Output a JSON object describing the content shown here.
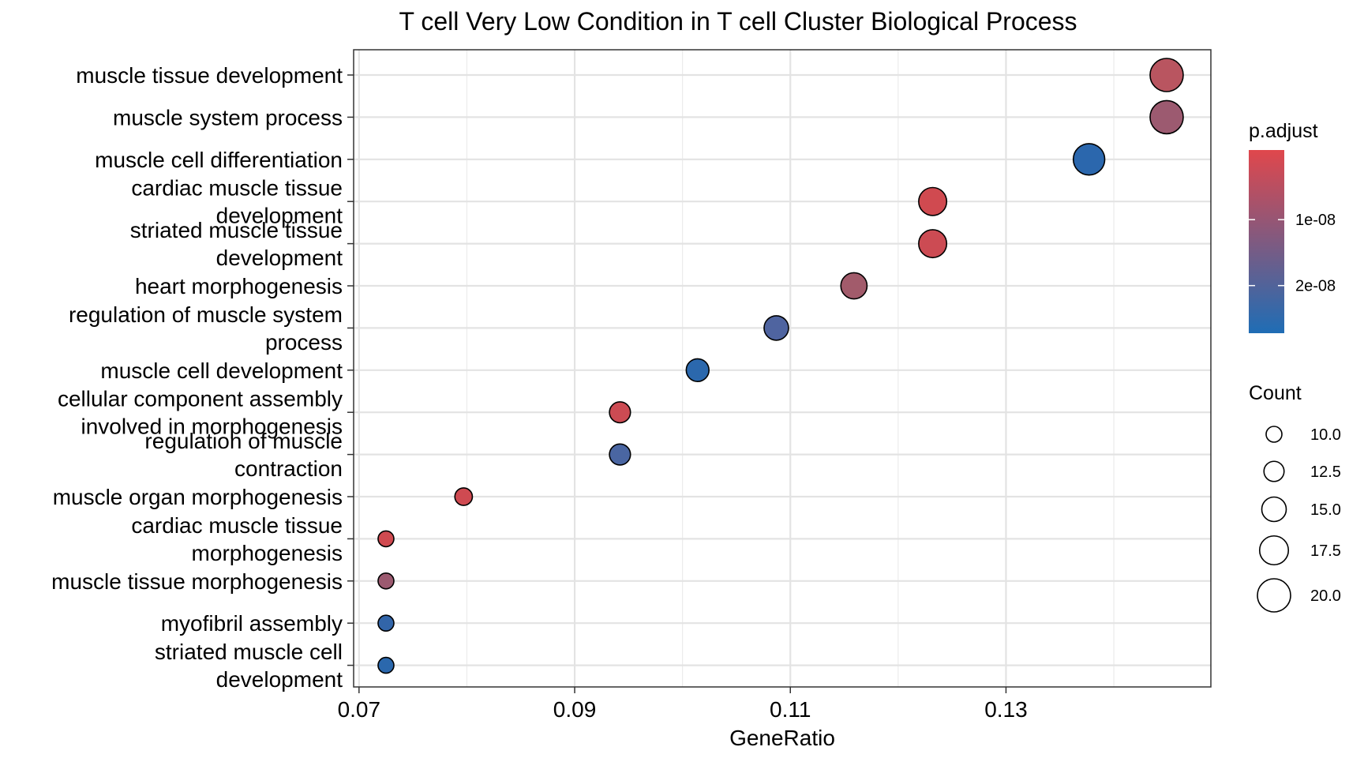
{
  "chart_data": {
    "type": "scatter",
    "title": "T cell Very Low Condition in T cell Cluster Biological Process",
    "xlabel": "GeneRatio",
    "ylabel": "",
    "xlim": [
      0.0695,
      0.149
    ],
    "xticks": [
      "0.07",
      "0.09",
      "0.11",
      "0.13"
    ],
    "xtick_values": [
      0.07,
      0.09,
      0.11,
      0.13
    ],
    "grid": true,
    "legend_position": "right",
    "categories": [
      "muscle tissue development",
      "muscle system process",
      "muscle cell differentiation",
      "cardiac muscle tissue development",
      "striated muscle tissue development",
      "heart morphogenesis",
      "regulation of muscle system process",
      "muscle cell development",
      "cellular component assembly involved in morphogenesis",
      "regulation of muscle contraction",
      "muscle organ morphogenesis",
      "cardiac muscle tissue morphogenesis",
      "muscle tissue morphogenesis",
      "myofibril assembly",
      "striated muscle cell development"
    ],
    "category_lines": [
      [
        "muscle tissue development"
      ],
      [
        "muscle system process"
      ],
      [
        "muscle cell differentiation"
      ],
      [
        "cardiac muscle tissue",
        "development"
      ],
      [
        "striated muscle tissue",
        "development"
      ],
      [
        "heart morphogenesis"
      ],
      [
        "regulation of muscle system",
        "process"
      ],
      [
        "muscle cell development"
      ],
      [
        "cellular component assembly",
        "involved in morphogenesis"
      ],
      [
        "regulation of muscle",
        "contraction"
      ],
      [
        "muscle organ morphogenesis"
      ],
      [
        "cardiac muscle tissue",
        "morphogenesis"
      ],
      [
        "muscle tissue morphogenesis"
      ],
      [
        "myofibril assembly"
      ],
      [
        "striated muscle cell",
        "development"
      ]
    ],
    "points": [
      {
        "term": "muscle tissue development",
        "gene_ratio": 0.1449,
        "count": 20,
        "color": "#b95560"
      },
      {
        "term": "muscle system process",
        "gene_ratio": 0.1449,
        "count": 20,
        "color": "#9c5a70"
      },
      {
        "term": "muscle cell differentiation",
        "gene_ratio": 0.1377,
        "count": 19,
        "color": "#2b67ad"
      },
      {
        "term": "cardiac muscle tissue development",
        "gene_ratio": 0.1232,
        "count": 17,
        "color": "#d04a50"
      },
      {
        "term": "striated muscle tissue development",
        "gene_ratio": 0.1232,
        "count": 17,
        "color": "#cc4b53"
      },
      {
        "term": "heart morphogenesis",
        "gene_ratio": 0.1159,
        "count": 16,
        "color": "#a25b6b"
      },
      {
        "term": "regulation of muscle system process",
        "gene_ratio": 0.1087,
        "count": 15,
        "color": "#4f64a0"
      },
      {
        "term": "muscle cell development",
        "gene_ratio": 0.1014,
        "count": 14,
        "color": "#2b68ad"
      },
      {
        "term": "cellular component assembly involved in morphogenesis",
        "gene_ratio": 0.0942,
        "count": 13,
        "color": "#cc4b53"
      },
      {
        "term": "regulation of muscle contraction",
        "gene_ratio": 0.0942,
        "count": 13,
        "color": "#4a66a2"
      },
      {
        "term": "muscle organ morphogenesis",
        "gene_ratio": 0.0797,
        "count": 11,
        "color": "#cf4a51"
      },
      {
        "term": "cardiac muscle tissue morphogenesis",
        "gene_ratio": 0.0725,
        "count": 10,
        "color": "#d04a50"
      },
      {
        "term": "muscle tissue morphogenesis",
        "gene_ratio": 0.0725,
        "count": 10,
        "color": "#9c5a70"
      },
      {
        "term": "myofibril assembly",
        "gene_ratio": 0.0725,
        "count": 10,
        "color": "#3265a9"
      },
      {
        "term": "striated muscle cell development",
        "gene_ratio": 0.0725,
        "count": 10,
        "color": "#2b68ad"
      }
    ],
    "color_legend": {
      "title": "p.adjust",
      "labels": [
        "1e-08",
        "2e-08"
      ],
      "label_fractions": [
        0.38,
        0.74
      ],
      "low_color": "#e0474c",
      "high_color": "#1f6db5"
    },
    "size_legend": {
      "title": "Count",
      "values": [
        10.0,
        12.5,
        15.0,
        17.5,
        20.0
      ],
      "labels": [
        "10.0",
        "12.5",
        "15.0",
        "17.5",
        "20.0"
      ]
    }
  }
}
